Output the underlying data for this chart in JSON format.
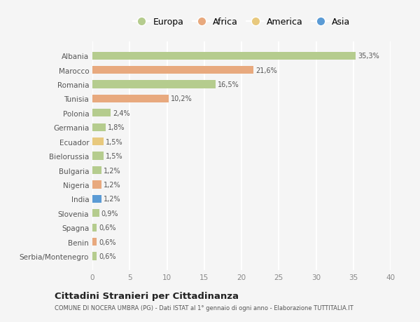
{
  "categories": [
    "Albania",
    "Marocco",
    "Romania",
    "Tunisia",
    "Polonia",
    "Germania",
    "Ecuador",
    "Bielorussia",
    "Bulgaria",
    "Nigeria",
    "India",
    "Slovenia",
    "Spagna",
    "Benin",
    "Serbia/Montenegro"
  ],
  "values": [
    35.3,
    21.6,
    16.5,
    10.2,
    2.4,
    1.8,
    1.5,
    1.5,
    1.2,
    1.2,
    1.2,
    0.9,
    0.6,
    0.6,
    0.6
  ],
  "labels": [
    "35,3%",
    "21,6%",
    "16,5%",
    "10,2%",
    "2,4%",
    "1,8%",
    "1,5%",
    "1,5%",
    "1,2%",
    "1,2%",
    "1,2%",
    "0,9%",
    "0,6%",
    "0,6%",
    "0,6%"
  ],
  "continents": [
    "Europa",
    "Africa",
    "Europa",
    "Africa",
    "Europa",
    "Europa",
    "America",
    "Europa",
    "Europa",
    "Africa",
    "Asia",
    "Europa",
    "Europa",
    "Africa",
    "Europa"
  ],
  "colors": {
    "Europa": "#b5cc8e",
    "Africa": "#e8a97e",
    "America": "#e8c97e",
    "Asia": "#5b9bd5"
  },
  "title": "Cittadini Stranieri per Cittadinanza",
  "subtitle": "COMUNE DI NOCERA UMBRA (PG) - Dati ISTAT al 1° gennaio di ogni anno - Elaborazione TUTTITALIA.IT",
  "xlim": [
    0,
    40
  ],
  "xticks": [
    0,
    5,
    10,
    15,
    20,
    25,
    30,
    35,
    40
  ],
  "background_color": "#f5f5f5",
  "grid_color": "#ffffff",
  "bar_height": 0.55
}
